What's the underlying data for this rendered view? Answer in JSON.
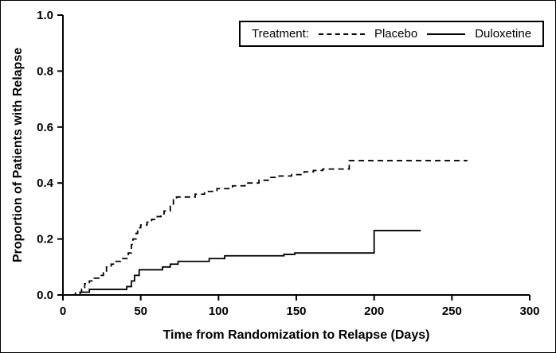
{
  "figure": {
    "background": "#ffffff",
    "line_color": "#000000"
  },
  "chart_data": {
    "type": "line",
    "subtype": "kaplan-meier-step",
    "title": "",
    "xlabel": "Time from Randomization to Relapse (Days)",
    "ylabel": "Proportion of Patients with Relapse",
    "xlim": [
      0,
      300
    ],
    "ylim": [
      0,
      1.0
    ],
    "xticks": [
      "0",
      "50",
      "100",
      "150",
      "200",
      "250",
      "300"
    ],
    "yticks": [
      "0.0",
      "0.2",
      "0.4",
      "0.6",
      "0.8",
      "1.0"
    ],
    "grid": false,
    "legend": {
      "title": "Treatment:",
      "position": "top-inside",
      "entries": [
        {
          "name": "Placebo",
          "line_style": "dashed",
          "color": "#000000"
        },
        {
          "name": "Duloxetine",
          "line_style": "solid",
          "color": "#000000"
        }
      ]
    },
    "series": [
      {
        "name": "Placebo",
        "style": "dashed",
        "step": true,
        "points": [
          [
            0,
            0.0
          ],
          [
            8,
            0.01
          ],
          [
            12,
            0.02
          ],
          [
            14,
            0.04
          ],
          [
            17,
            0.05
          ],
          [
            20,
            0.06
          ],
          [
            24,
            0.07
          ],
          [
            26,
            0.08
          ],
          [
            28,
            0.1
          ],
          [
            31,
            0.11
          ],
          [
            33,
            0.12
          ],
          [
            37,
            0.13
          ],
          [
            42,
            0.15
          ],
          [
            44,
            0.18
          ],
          [
            45,
            0.2
          ],
          [
            47,
            0.22
          ],
          [
            48,
            0.24
          ],
          [
            50,
            0.25
          ],
          [
            54,
            0.26
          ],
          [
            57,
            0.27
          ],
          [
            60,
            0.28
          ],
          [
            63,
            0.29
          ],
          [
            65,
            0.3
          ],
          [
            69,
            0.32
          ],
          [
            71,
            0.34
          ],
          [
            73,
            0.35
          ],
          [
            85,
            0.36
          ],
          [
            91,
            0.37
          ],
          [
            99,
            0.38
          ],
          [
            109,
            0.39
          ],
          [
            117,
            0.4
          ],
          [
            126,
            0.41
          ],
          [
            132,
            0.42
          ],
          [
            139,
            0.425
          ],
          [
            147,
            0.43
          ],
          [
            155,
            0.44
          ],
          [
            161,
            0.445
          ],
          [
            167,
            0.45
          ],
          [
            184,
            0.48
          ],
          [
            260,
            0.48
          ]
        ]
      },
      {
        "name": "Duloxetine",
        "style": "solid",
        "step": true,
        "points": [
          [
            0,
            0.0
          ],
          [
            11,
            0.01
          ],
          [
            17,
            0.02
          ],
          [
            41,
            0.03
          ],
          [
            44,
            0.05
          ],
          [
            46,
            0.07
          ],
          [
            49,
            0.09
          ],
          [
            64,
            0.1
          ],
          [
            69,
            0.11
          ],
          [
            74,
            0.12
          ],
          [
            94,
            0.13
          ],
          [
            104,
            0.14
          ],
          [
            142,
            0.145
          ],
          [
            149,
            0.15
          ],
          [
            200,
            0.23
          ],
          [
            230,
            0.23
          ]
        ]
      }
    ]
  }
}
